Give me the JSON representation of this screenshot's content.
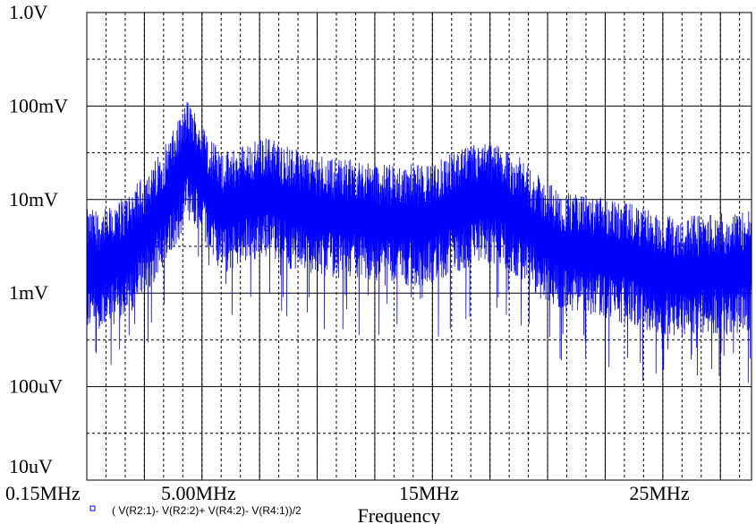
{
  "chart_data": {
    "type": "line",
    "title": "",
    "xlabel": "Frequency",
    "ylabel": "",
    "y_scale": "log",
    "ylim": [
      1e-05,
      1.0
    ],
    "xlim": [
      0.15,
      29
    ],
    "x_unit": "MHz",
    "yticks": [
      {
        "value": 1.0,
        "label": "1.0V"
      },
      {
        "value": 0.1,
        "label": "100mV"
      },
      {
        "value": 0.01,
        "label": "10mV"
      },
      {
        "value": 0.001,
        "label": "1mV"
      },
      {
        "value": 0.0001,
        "label": "100uV"
      },
      {
        "value": 1e-05,
        "label": "10uV"
      }
    ],
    "xticks": [
      {
        "value": 0.15,
        "label": "0.15MHz"
      },
      {
        "value": 5.0,
        "label": "5.00MHz"
      },
      {
        "value": 15.0,
        "label": "15MHz"
      },
      {
        "value": 25.0,
        "label": "25MHz"
      }
    ],
    "grid": true,
    "legend_position": "bottom-left",
    "series": [
      {
        "name": "( V(R2:1)- V(R2:2)+ V(R4:2)- V(R4:1))/2",
        "color": "#0000ff",
        "envelope": {
          "x": [
            0.15,
            1,
            2,
            3,
            4,
            4.5,
            5,
            5.5,
            6,
            7,
            8,
            9,
            10,
            11,
            12,
            13,
            14,
            15,
            16,
            17,
            18,
            19,
            20,
            21,
            22,
            23,
            24,
            25,
            26,
            27,
            28,
            29
          ],
          "y_mean": [
            0.002,
            0.002,
            0.003,
            0.006,
            0.015,
            0.03,
            0.02,
            0.012,
            0.008,
            0.01,
            0.012,
            0.009,
            0.008,
            0.007,
            0.007,
            0.006,
            0.006,
            0.006,
            0.008,
            0.01,
            0.01,
            0.007,
            0.004,
            0.003,
            0.0028,
            0.0025,
            0.0022,
            0.0018,
            0.0016,
            0.0018,
            0.0018,
            0.002
          ]
        }
      }
    ]
  }
}
